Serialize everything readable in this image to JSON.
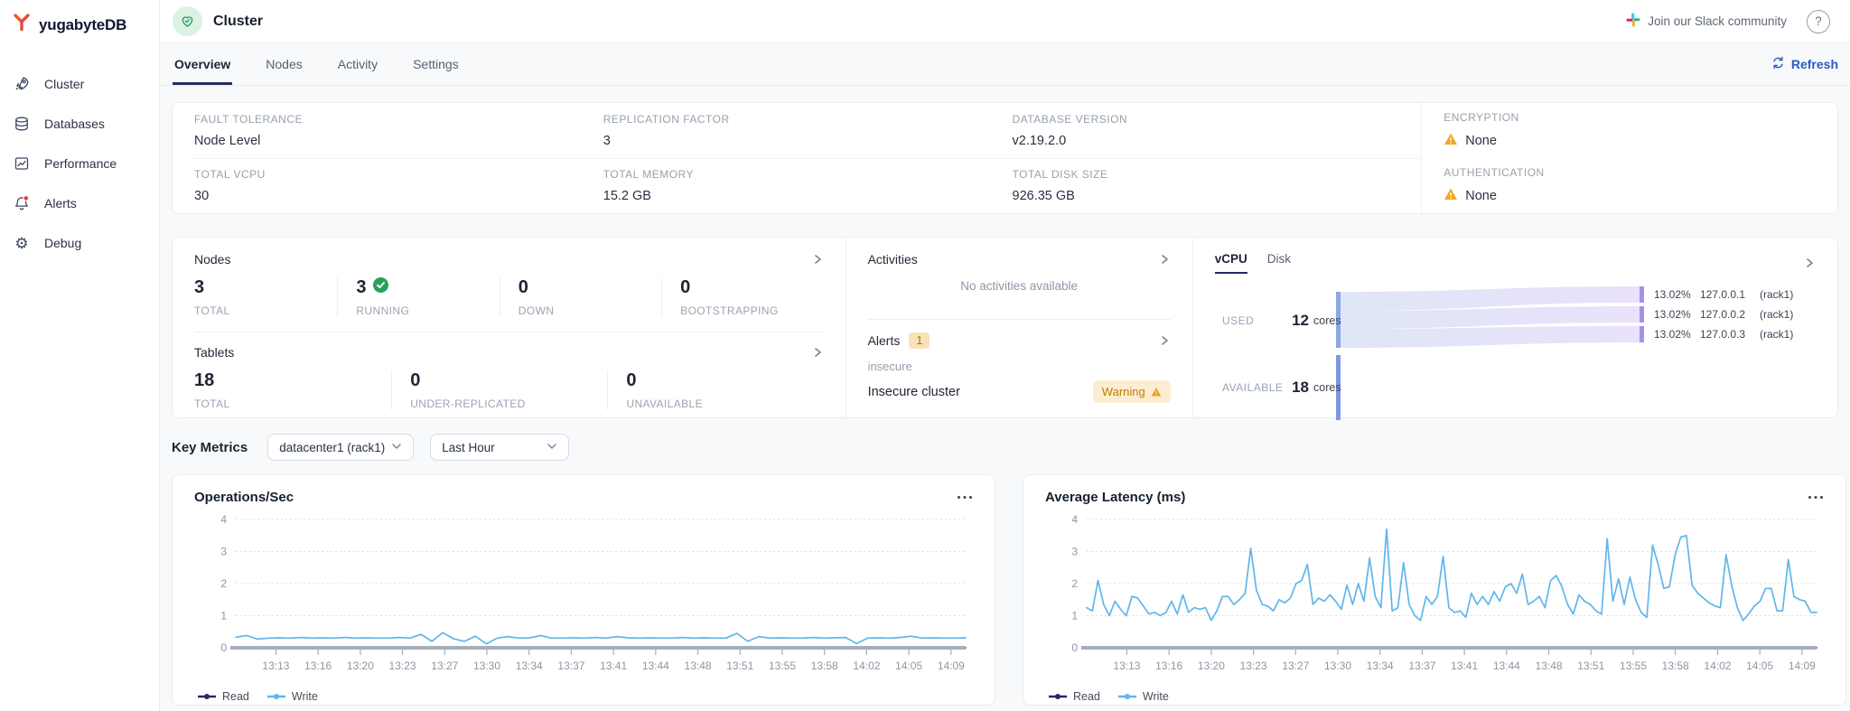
{
  "brand": {
    "name": "yugabyteDB"
  },
  "sidebar": {
    "items": [
      {
        "label": "Cluster",
        "icon": "rocket-icon"
      },
      {
        "label": "Databases",
        "icon": "database-icon"
      },
      {
        "label": "Performance",
        "icon": "performance-icon"
      },
      {
        "label": "Alerts",
        "icon": "bell-icon",
        "has_notification": true
      },
      {
        "label": "Debug",
        "icon": "gear-icon"
      }
    ]
  },
  "header": {
    "title": "Cluster",
    "slack_link": "Join our Slack community"
  },
  "tabs": {
    "items": [
      "Overview",
      "Nodes",
      "Activity",
      "Settings"
    ],
    "active": "Overview",
    "refresh": "Refresh"
  },
  "cluster_info": {
    "fault_tolerance": {
      "label": "FAULT TOLERANCE",
      "value": "Node Level"
    },
    "replication_factor": {
      "label": "REPLICATION FACTOR",
      "value": "3"
    },
    "database_version": {
      "label": "DATABASE VERSION",
      "value": "v2.19.2.0"
    },
    "encryption": {
      "label": "ENCRYPTION",
      "value": "None",
      "warning": true
    },
    "total_vcpu": {
      "label": "TOTAL VCPU",
      "value": "30"
    },
    "total_memory": {
      "label": "TOTAL MEMORY",
      "value": "15.2 GB"
    },
    "total_disk": {
      "label": "TOTAL DISK SIZE",
      "value": "926.35 GB"
    },
    "authentication": {
      "label": "AUTHENTICATION",
      "value": "None",
      "warning": true
    }
  },
  "nodes_panel": {
    "title": "Nodes",
    "stats": [
      {
        "value": "3",
        "label": "TOTAL"
      },
      {
        "value": "3",
        "label": "RUNNING",
        "check": true
      },
      {
        "value": "0",
        "label": "DOWN"
      },
      {
        "value": "0",
        "label": "BOOTSTRAPPING"
      }
    ]
  },
  "tablets_panel": {
    "title": "Tablets",
    "stats": [
      {
        "value": "18",
        "label": "TOTAL"
      },
      {
        "value": "0",
        "label": "UNDER-REPLICATED"
      },
      {
        "value": "0",
        "label": "UNAVAILABLE"
      }
    ]
  },
  "activities_panel": {
    "title": "Activities",
    "empty": "No activities available"
  },
  "alerts_panel": {
    "title": "Alerts",
    "count": "1",
    "name": "insecure",
    "description": "Insecure cluster",
    "severity": "Warning"
  },
  "usage_panel": {
    "tabs": [
      "vCPU",
      "Disk"
    ],
    "active": "vCPU",
    "used": {
      "label": "USED",
      "value": "12",
      "unit": "cores"
    },
    "available": {
      "label": "AVAILABLE",
      "value": "18",
      "unit": "cores"
    },
    "nodes": [
      {
        "pct": "13.02%",
        "ip": "127.0.0.1",
        "zone": "(rack1)"
      },
      {
        "pct": "13.02%",
        "ip": "127.0.0.2",
        "zone": "(rack1)"
      },
      {
        "pct": "13.02%",
        "ip": "127.0.0.3",
        "zone": "(rack1)"
      }
    ]
  },
  "key_metrics": {
    "title": "Key Metrics",
    "region": "datacenter1 (rack1)",
    "time_range": "Last Hour"
  },
  "chart_data": [
    {
      "type": "line",
      "title": "Operations/Sec",
      "ylim": [
        0,
        4
      ],
      "yticks": [
        0,
        1,
        2,
        3,
        4
      ],
      "x_tick_labels": [
        "13:13",
        "13:16",
        "13:20",
        "13:23",
        "13:27",
        "13:30",
        "13:34",
        "13:37",
        "13:41",
        "13:44",
        "13:48",
        "13:51",
        "13:55",
        "13:58",
        "14:02",
        "14:05",
        "14:09"
      ],
      "grid": "dotted-horizontal",
      "legend_position": "bottom",
      "series": [
        {
          "name": "Read",
          "color": "#262b63",
          "values": [
            0,
            0
          ]
        },
        {
          "name": "Write",
          "color": "#5fb6ea",
          "values": [
            0.33,
            0.38,
            0.27,
            0.3,
            0.31,
            0.3,
            0.32,
            0.3,
            0.31,
            0.3,
            0.32,
            0.3,
            0.31,
            0.3,
            0.3,
            0.32,
            0.3,
            0.42,
            0.2,
            0.47,
            0.28,
            0.2,
            0.36,
            0.12,
            0.3,
            0.35,
            0.3,
            0.31,
            0.38,
            0.3,
            0.3,
            0.31,
            0.3,
            0.32,
            0.3,
            0.35,
            0.31,
            0.3,
            0.31,
            0.3,
            0.3,
            0.32,
            0.3,
            0.31,
            0.3,
            0.3,
            0.45,
            0.2,
            0.35,
            0.3,
            0.31,
            0.3,
            0.3,
            0.32,
            0.3,
            0.31,
            0.32,
            0.13,
            0.3,
            0.31,
            0.3,
            0.32,
            0.36,
            0.3,
            0.31,
            0.3,
            0.3,
            0.31
          ]
        }
      ]
    },
    {
      "type": "line",
      "title": "Average Latency (ms)",
      "ylim": [
        0,
        4
      ],
      "yticks": [
        0,
        1,
        2,
        3,
        4
      ],
      "x_tick_labels": [
        "13:13",
        "13:16",
        "13:20",
        "13:23",
        "13:27",
        "13:30",
        "13:34",
        "13:37",
        "13:41",
        "13:44",
        "13:48",
        "13:51",
        "13:55",
        "13:58",
        "14:02",
        "14:05",
        "14:09"
      ],
      "grid": "dotted-horizontal",
      "legend_position": "bottom",
      "series": [
        {
          "name": "Read",
          "color": "#262b63",
          "values": [
            0,
            0
          ]
        },
        {
          "name": "Write",
          "color": "#5fb6ea",
          "values": [
            1.25,
            1.15,
            2.1,
            1.35,
            1.0,
            1.45,
            1.2,
            1.0,
            1.6,
            1.55,
            1.3,
            1.05,
            1.1,
            1.0,
            1.1,
            1.45,
            1.05,
            1.65,
            1.1,
            1.25,
            1.2,
            1.25,
            0.85,
            1.15,
            1.6,
            1.6,
            1.35,
            1.5,
            1.7,
            3.1,
            1.8,
            1.35,
            1.3,
            1.15,
            1.5,
            1.4,
            1.55,
            2.0,
            2.1,
            2.6,
            1.35,
            1.55,
            1.45,
            1.65,
            1.45,
            1.2,
            1.95,
            1.35,
            2.0,
            1.45,
            2.8,
            1.6,
            1.25,
            3.7,
            1.15,
            1.25,
            2.65,
            1.35,
            1.0,
            0.85,
            1.6,
            1.35,
            1.6,
            2.85,
            1.25,
            1.1,
            1.15,
            0.95,
            1.7,
            1.35,
            1.6,
            1.35,
            1.75,
            1.45,
            1.9,
            2.0,
            1.7,
            2.3,
            1.35,
            1.45,
            1.6,
            1.25,
            2.1,
            2.25,
            1.9,
            1.35,
            1.05,
            1.65,
            1.45,
            1.35,
            1.15,
            1.05,
            3.4,
            1.45,
            2.15,
            1.35,
            2.2,
            1.5,
            1.1,
            0.95,
            3.2,
            2.6,
            1.85,
            1.9,
            2.9,
            3.45,
            3.5,
            1.95,
            1.7,
            1.55,
            1.4,
            1.3,
            1.25,
            2.9,
            1.95,
            1.25,
            0.85,
            1.05,
            1.3,
            1.45,
            1.85,
            1.85,
            1.15,
            1.15,
            2.75,
            1.6,
            1.5,
            1.45,
            1.1,
            1.1
          ]
        }
      ]
    }
  ]
}
